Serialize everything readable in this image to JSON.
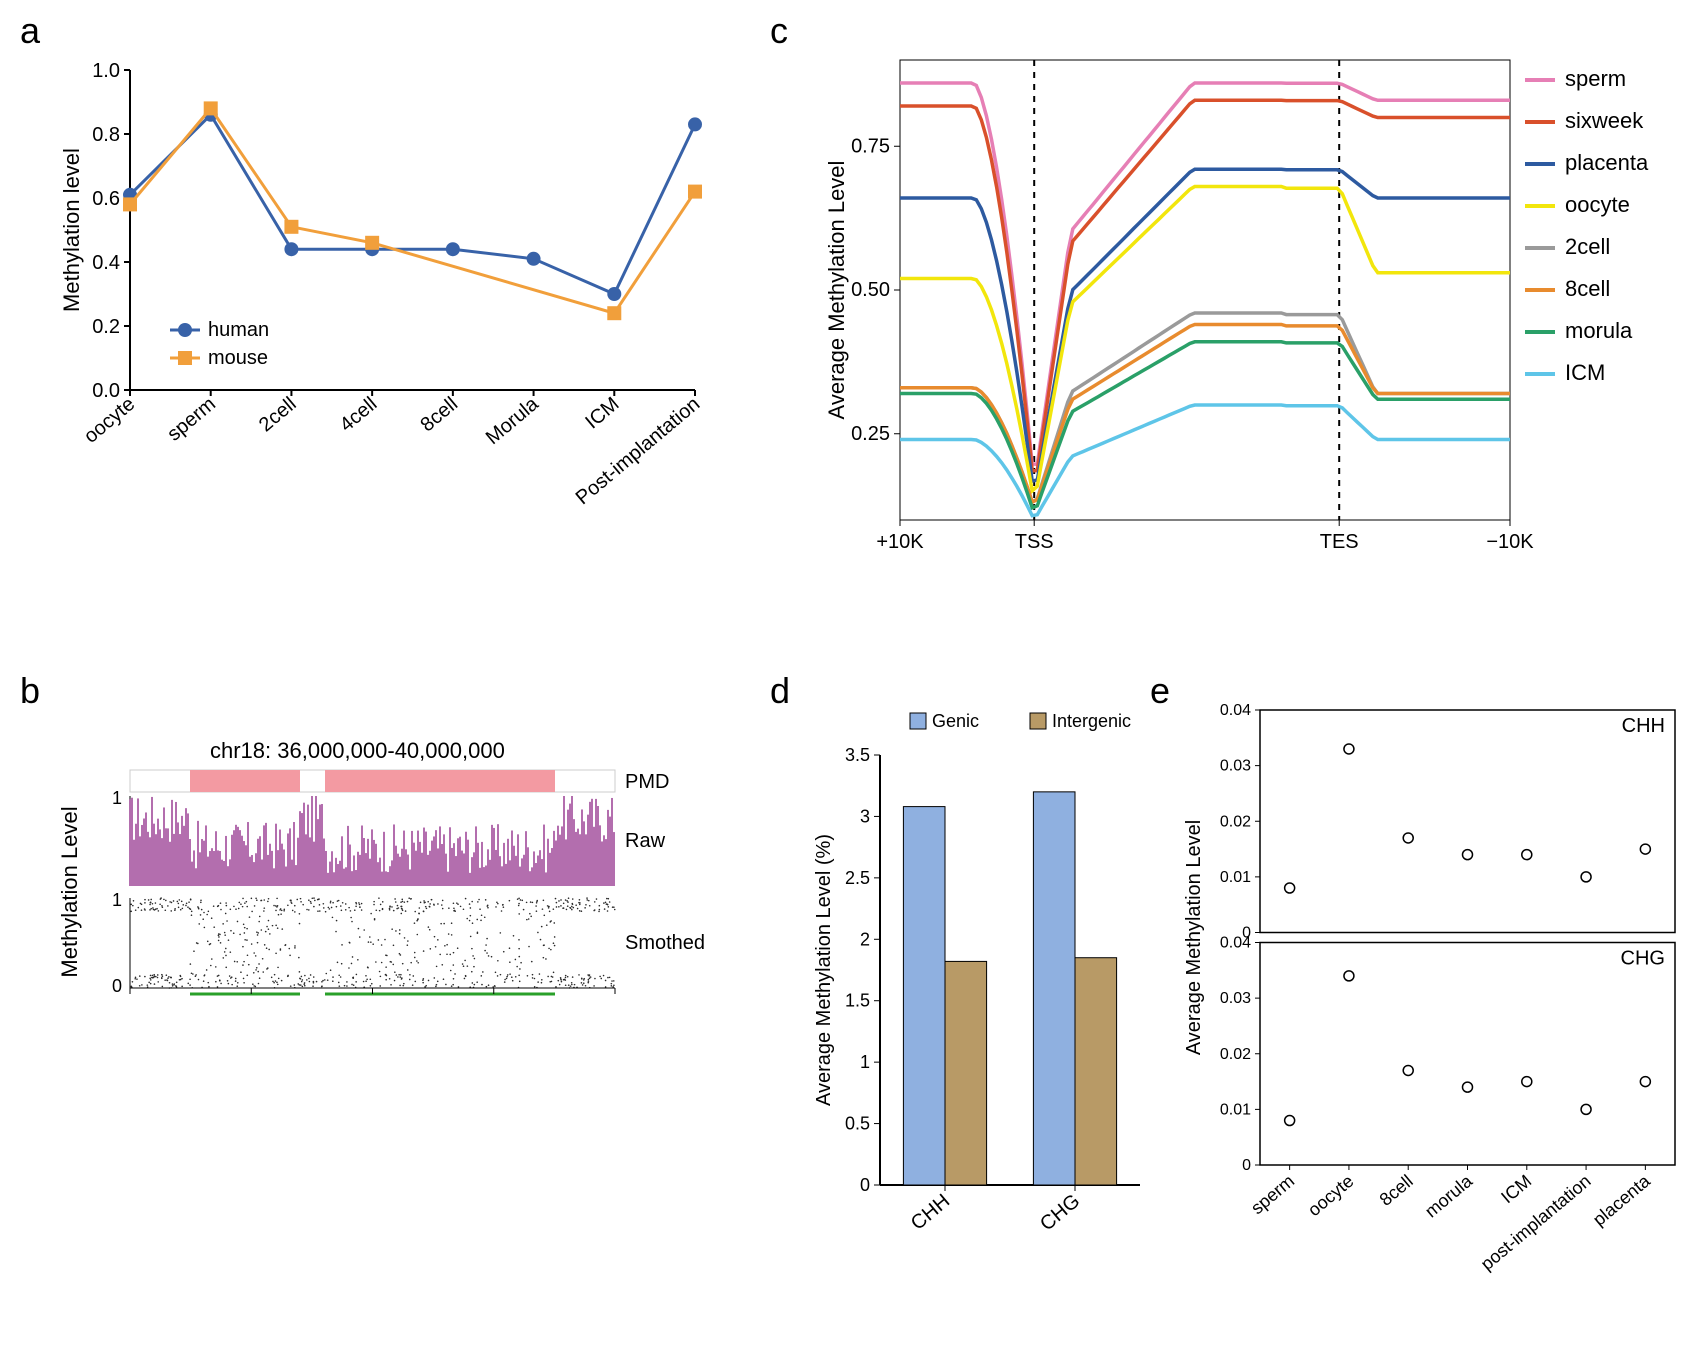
{
  "panel_a": {
    "label": "a",
    "type": "line",
    "ylabel": "Methylation level",
    "categories": [
      "oocyte",
      "sperm",
      "2cell",
      "4cell",
      "8cell",
      "Morula",
      "ICM",
      "Post-implantation"
    ],
    "series": [
      {
        "name": "human",
        "color": "#3862a8",
        "marker": "circle",
        "values": [
          0.61,
          0.86,
          0.44,
          0.44,
          0.44,
          0.41,
          0.3,
          0.83
        ]
      },
      {
        "name": "mouse",
        "color": "#f19f3b",
        "marker": "square",
        "values": [
          0.58,
          0.88,
          0.51,
          0.46,
          null,
          null,
          0.24,
          0.62
        ]
      }
    ],
    "ylim": [
      0.0,
      1.0
    ],
    "ytick_step": 0.2,
    "background_color": "#ffffff"
  },
  "panel_b": {
    "label": "b",
    "region_text": "chr18: 36,000,000-40,000,000",
    "tracks": [
      "PMD",
      "Raw",
      "Smothed"
    ],
    "ylabel": "Methylation Level",
    "pmd_color": "#f39aa2",
    "raw_color": "#a04a9a",
    "smoothed_color": "#2a2a2a",
    "green_segment_color": "#2aa02a",
    "ylim": [
      0,
      1
    ]
  },
  "panel_c": {
    "label": "c",
    "type": "metagene",
    "ylabel": "Average Methylation Level",
    "xticks": [
      "+10K",
      "TSS",
      "TES",
      "−10K"
    ],
    "ylim": [
      0.1,
      0.9
    ],
    "yticks": [
      0.25,
      0.5,
      0.75
    ],
    "series": [
      {
        "name": "sperm",
        "color": "#e67fb5",
        "profile": "high"
      },
      {
        "name": "sixweek",
        "color": "#d9502b",
        "profile": "high2"
      },
      {
        "name": "placenta",
        "color": "#2d5aa0",
        "profile": "mid_high"
      },
      {
        "name": "oocyte",
        "color": "#f2e60c",
        "profile": "mid"
      },
      {
        "name": "2cell",
        "color": "#9a9a9a",
        "profile": "mid_low"
      },
      {
        "name": "8cell",
        "color": "#e88b2e",
        "profile": "mid_low2"
      },
      {
        "name": "morula",
        "color": "#2aa068",
        "profile": "mid_low3"
      },
      {
        "name": "ICM",
        "color": "#5ec5e8",
        "profile": "low"
      }
    ],
    "dash_color": "#000000"
  },
  "panel_d": {
    "label": "d",
    "type": "bar",
    "ylabel": "Average Methylation Level (%)",
    "categories": [
      "CHH",
      "CHG"
    ],
    "groups": [
      {
        "name": "Genic",
        "color": "#8fb0e0",
        "values": [
          3.08,
          3.2
        ]
      },
      {
        "name": "Intergenic",
        "color": "#b89a66",
        "values": [
          1.82,
          1.85
        ]
      }
    ],
    "ylim": [
      0,
      3.5
    ],
    "ytick_step": 0.5
  },
  "panel_e": {
    "label": "e",
    "type": "scatter",
    "ylabel": "Average Methylation Level",
    "categories": [
      "sperm",
      "oocyte",
      "8cell",
      "morula",
      "ICM",
      "post-implantation",
      "placenta"
    ],
    "subpanels": [
      {
        "name": "CHH",
        "ylim": [
          0,
          0.04
        ],
        "yticks": [
          0,
          0.01,
          0.02,
          0.03,
          0.04
        ],
        "values": [
          0.008,
          0.033,
          0.017,
          0.014,
          0.014,
          0.01,
          0.015
        ]
      },
      {
        "name": "CHG",
        "ylim": [
          0,
          0.04
        ],
        "yticks": [
          0,
          0.01,
          0.02,
          0.03,
          0.04
        ],
        "values": [
          0.008,
          0.034,
          0.017,
          0.014,
          0.015,
          0.01,
          0.015
        ]
      }
    ],
    "marker_color": "#000000",
    "marker_fill": "#ffffff"
  }
}
